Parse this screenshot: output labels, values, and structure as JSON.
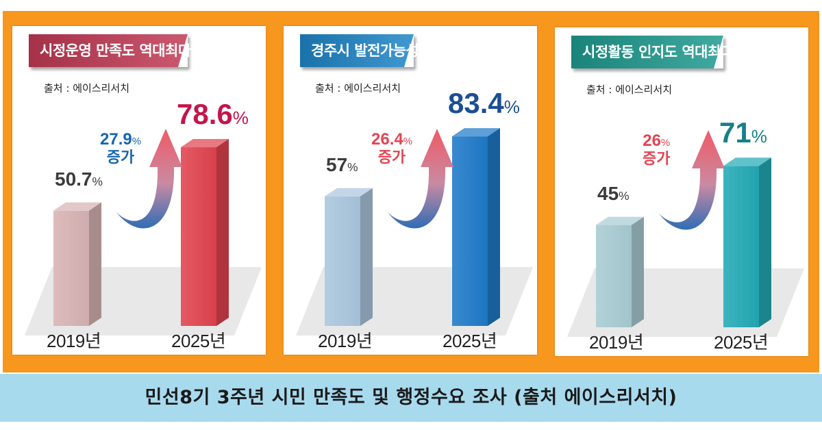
{
  "footer_caption": "민선8기 3주년 시민 만족도 및 행정수요 조사 (출처 에이스리서치)",
  "chart_data": [
    {
      "type": "bar",
      "title": "시정운영 만족도 역대최다",
      "source": "출처 : 에이스리서치",
      "categories": [
        "2019년",
        "2025년"
      ],
      "values": [
        50.7,
        78.6
      ],
      "value_labels": [
        "50.7",
        "78.6"
      ],
      "unit": "%",
      "increase": {
        "value": "27.9",
        "unit": "%",
        "label": "증가"
      },
      "colors": {
        "banner": "#c23a55",
        "bar_2019": "#d8b3b4",
        "bar_2025": "#e0434f",
        "big_value": "#c4154a",
        "increase": "#1565b0"
      }
    },
    {
      "type": "bar",
      "title": "경주시 발전가능성",
      "source": "출처 : 에이스리서치",
      "categories": [
        "2019년",
        "2025년"
      ],
      "values": [
        57,
        83.4
      ],
      "value_labels": [
        "57",
        "83.4"
      ],
      "unit": "%",
      "increase": {
        "value": "26.4",
        "unit": "%",
        "label": "증가"
      },
      "colors": {
        "banner": "#1f86c9",
        "bar_2019": "#aac6de",
        "bar_2025": "#1e7ac9",
        "big_value": "#1b4f93",
        "increase": "#e24452"
      }
    },
    {
      "type": "bar",
      "title": "시정활동 인지도 역대최다",
      "source": "출처 : 에이스리서치",
      "categories": [
        "2019년",
        "2025년"
      ],
      "values": [
        45,
        71
      ],
      "value_labels": [
        "45",
        "71"
      ],
      "unit": "%",
      "increase": {
        "value": "26",
        "unit": "%",
        "label": "증가"
      },
      "colors": {
        "banner": "#1f9b8f",
        "bar_2019": "#a8ccd3",
        "bar_2025": "#22aab5",
        "big_value": "#15808a",
        "increase": "#e24452"
      }
    }
  ]
}
